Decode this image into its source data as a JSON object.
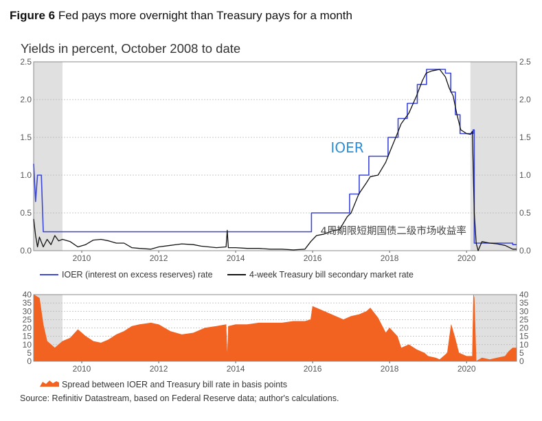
{
  "figure": {
    "label": "Figure 6",
    "title": "Fed pays more overnight than Treasury pays for a month"
  },
  "chart_title": "Yields in percent, October 2008 to date",
  "source": "Source: Refinitiv Datastream, based on Federal Reserve data; author's calculations.",
  "colors": {
    "ioer": "#3b45d6",
    "tbill": "#111111",
    "spread": "#f26322",
    "recession": "#e0e0e0",
    "grid": "#b5b5b5",
    "ioer_annotation": "#2f8fd6"
  },
  "chart_data": [
    {
      "type": "line",
      "title": "Yields in percent, October 2008 to date",
      "xlabel": "",
      "ylabel": "",
      "xlim": [
        2008.75,
        2021.3
      ],
      "ylim": [
        0,
        2.5
      ],
      "x_ticks": [
        "2010",
        "2012",
        "2014",
        "2016",
        "2018",
        "2020"
      ],
      "y_ticks": [
        "0.0",
        "0.5",
        "1.0",
        "1.5",
        "2.0",
        "2.5"
      ],
      "shaded_periods": [
        [
          2008.75,
          2009.5
        ],
        [
          2020.1,
          2021.3
        ]
      ],
      "annotations": [
        {
          "text": "IOER",
          "x": 2016.9,
          "y": 1.3
        },
        {
          "text": "4周期限短期国债二级市场收益率",
          "x": 2018.1,
          "y": 0.22
        }
      ],
      "series": [
        {
          "name": "IOER (interest on excess reserves) rate",
          "style": "step",
          "points": [
            [
              2008.75,
              1.15
            ],
            [
              2008.8,
              0.65
            ],
            [
              2008.85,
              1.0
            ],
            [
              2008.95,
              1.0
            ],
            [
              2009.0,
              0.25
            ],
            [
              2015.97,
              0.25
            ],
            [
              2015.97,
              0.5
            ],
            [
              2016.96,
              0.5
            ],
            [
              2016.96,
              0.75
            ],
            [
              2017.21,
              0.75
            ],
            [
              2017.21,
              1.0
            ],
            [
              2017.46,
              1.0
            ],
            [
              2017.46,
              1.25
            ],
            [
              2017.96,
              1.25
            ],
            [
              2017.96,
              1.5
            ],
            [
              2018.22,
              1.5
            ],
            [
              2018.22,
              1.75
            ],
            [
              2018.46,
              1.75
            ],
            [
              2018.46,
              1.95
            ],
            [
              2018.72,
              1.95
            ],
            [
              2018.72,
              2.2
            ],
            [
              2018.96,
              2.2
            ],
            [
              2018.96,
              2.4
            ],
            [
              2019.45,
              2.4
            ],
            [
              2019.45,
              2.35
            ],
            [
              2019.59,
              2.35
            ],
            [
              2019.59,
              2.1
            ],
            [
              2019.71,
              2.1
            ],
            [
              2019.71,
              1.8
            ],
            [
              2019.83,
              1.8
            ],
            [
              2019.83,
              1.55
            ],
            [
              2020.17,
              1.55
            ],
            [
              2020.17,
              1.6
            ],
            [
              2020.2,
              1.6
            ],
            [
              2020.2,
              0.1
            ],
            [
              2021.2,
              0.1
            ],
            [
              2021.2,
              0.08
            ],
            [
              2021.3,
              0.08
            ]
          ]
        },
        {
          "name": "4-week Treasury bill secondary market rate",
          "style": "line",
          "points": [
            [
              2008.75,
              0.42
            ],
            [
              2008.8,
              0.2
            ],
            [
              2008.85,
              0.05
            ],
            [
              2008.9,
              0.18
            ],
            [
              2009.0,
              0.05
            ],
            [
              2009.1,
              0.15
            ],
            [
              2009.2,
              0.08
            ],
            [
              2009.3,
              0.2
            ],
            [
              2009.4,
              0.13
            ],
            [
              2009.5,
              0.15
            ],
            [
              2009.7,
              0.12
            ],
            [
              2009.9,
              0.05
            ],
            [
              2010.1,
              0.08
            ],
            [
              2010.3,
              0.14
            ],
            [
              2010.5,
              0.15
            ],
            [
              2010.7,
              0.13
            ],
            [
              2010.9,
              0.1
            ],
            [
              2011.1,
              0.1
            ],
            [
              2011.3,
              0.04
            ],
            [
              2011.5,
              0.03
            ],
            [
              2011.8,
              0.02
            ],
            [
              2012.0,
              0.05
            ],
            [
              2012.3,
              0.07
            ],
            [
              2012.6,
              0.09
            ],
            [
              2012.9,
              0.08
            ],
            [
              2013.1,
              0.06
            ],
            [
              2013.3,
              0.05
            ],
            [
              2013.5,
              0.04
            ],
            [
              2013.75,
              0.05
            ],
            [
              2013.78,
              0.27
            ],
            [
              2013.81,
              0.04
            ],
            [
              2014.0,
              0.04
            ],
            [
              2014.3,
              0.03
            ],
            [
              2014.6,
              0.03
            ],
            [
              2014.9,
              0.02
            ],
            [
              2015.2,
              0.02
            ],
            [
              2015.5,
              0.01
            ],
            [
              2015.8,
              0.02
            ],
            [
              2015.95,
              0.12
            ],
            [
              2016.1,
              0.2
            ],
            [
              2016.3,
              0.22
            ],
            [
              2016.5,
              0.26
            ],
            [
              2016.7,
              0.28
            ],
            [
              2016.9,
              0.45
            ],
            [
              2017.0,
              0.5
            ],
            [
              2017.2,
              0.75
            ],
            [
              2017.4,
              0.9
            ],
            [
              2017.5,
              0.98
            ],
            [
              2017.7,
              1.0
            ],
            [
              2017.9,
              1.17
            ],
            [
              2018.0,
              1.3
            ],
            [
              2018.2,
              1.55
            ],
            [
              2018.3,
              1.68
            ],
            [
              2018.5,
              1.82
            ],
            [
              2018.7,
              2.05
            ],
            [
              2018.85,
              2.25
            ],
            [
              2018.95,
              2.35
            ],
            [
              2019.1,
              2.38
            ],
            [
              2019.3,
              2.4
            ],
            [
              2019.45,
              2.3
            ],
            [
              2019.55,
              2.15
            ],
            [
              2019.65,
              2.05
            ],
            [
              2019.75,
              1.8
            ],
            [
              2019.85,
              1.6
            ],
            [
              2020.0,
              1.55
            ],
            [
              2020.1,
              1.54
            ],
            [
              2020.15,
              1.58
            ],
            [
              2020.2,
              0.5
            ],
            [
              2020.25,
              0.1
            ],
            [
              2020.3,
              0.0
            ],
            [
              2020.4,
              0.12
            ],
            [
              2020.6,
              0.1
            ],
            [
              2020.8,
              0.09
            ],
            [
              2021.0,
              0.07
            ],
            [
              2021.2,
              0.02
            ],
            [
              2021.3,
              0.02
            ]
          ]
        }
      ]
    },
    {
      "type": "area",
      "title": "",
      "xlabel": "",
      "ylabel": "",
      "xlim": [
        2008.75,
        2021.3
      ],
      "ylim": [
        0,
        40
      ],
      "x_ticks": [
        "2010",
        "2012",
        "2014",
        "2016",
        "2018",
        "2020"
      ],
      "y_ticks": [
        "0",
        "5",
        "10",
        "15",
        "20",
        "25",
        "30",
        "35",
        "40"
      ],
      "shaded_periods": [
        [
          2008.75,
          2009.5
        ],
        [
          2020.2,
          2021.3
        ]
      ],
      "series": [
        {
          "name": "Spread between IOER and Treasury bill rate in basis points",
          "points": [
            [
              2008.75,
              40
            ],
            [
              2008.9,
              38
            ],
            [
              2009.0,
              22
            ],
            [
              2009.1,
              12
            ],
            [
              2009.3,
              8
            ],
            [
              2009.5,
              12
            ],
            [
              2009.7,
              14
            ],
            [
              2009.9,
              19
            ],
            [
              2010.1,
              15
            ],
            [
              2010.3,
              12
            ],
            [
              2010.5,
              11
            ],
            [
              2010.7,
              13
            ],
            [
              2010.9,
              16
            ],
            [
              2011.1,
              18
            ],
            [
              2011.3,
              21
            ],
            [
              2011.5,
              22
            ],
            [
              2011.8,
              23
            ],
            [
              2012.0,
              22
            ],
            [
              2012.3,
              18
            ],
            [
              2012.6,
              16
            ],
            [
              2012.9,
              17
            ],
            [
              2013.2,
              20
            ],
            [
              2013.5,
              21
            ],
            [
              2013.75,
              22
            ],
            [
              2013.78,
              2
            ],
            [
              2013.81,
              21
            ],
            [
              2014.0,
              22
            ],
            [
              2014.3,
              22
            ],
            [
              2014.6,
              23
            ],
            [
              2014.9,
              23
            ],
            [
              2015.2,
              23
            ],
            [
              2015.5,
              24
            ],
            [
              2015.8,
              24
            ],
            [
              2015.95,
              25
            ],
            [
              2016.0,
              33
            ],
            [
              2016.3,
              30
            ],
            [
              2016.5,
              28
            ],
            [
              2016.8,
              25
            ],
            [
              2017.0,
              27
            ],
            [
              2017.2,
              28
            ],
            [
              2017.4,
              30
            ],
            [
              2017.5,
              32
            ],
            [
              2017.7,
              26
            ],
            [
              2017.9,
              17
            ],
            [
              2018.0,
              20
            ],
            [
              2018.2,
              15
            ],
            [
              2018.3,
              8
            ],
            [
              2018.5,
              10
            ],
            [
              2018.7,
              7
            ],
            [
              2018.9,
              5
            ],
            [
              2019.0,
              3
            ],
            [
              2019.2,
              2
            ],
            [
              2019.3,
              1
            ],
            [
              2019.5,
              5
            ],
            [
              2019.6,
              22
            ],
            [
              2019.7,
              14
            ],
            [
              2019.8,
              5
            ],
            [
              2020.0,
              3
            ],
            [
              2020.15,
              3
            ],
            [
              2020.18,
              40
            ],
            [
              2020.2,
              38
            ],
            [
              2020.25,
              0
            ],
            [
              2020.4,
              2
            ],
            [
              2020.6,
              1
            ],
            [
              2020.8,
              2
            ],
            [
              2021.0,
              3
            ],
            [
              2021.1,
              6
            ],
            [
              2021.2,
              8
            ],
            [
              2021.3,
              8
            ]
          ]
        }
      ]
    }
  ],
  "legend_top": [
    {
      "label": "IOER (interest on excess reserves) rate"
    },
    {
      "label": "4-week Treasury bill secondary market rate"
    }
  ],
  "legend_bottom": [
    {
      "label": "Spread between IOER and Treasury bill rate in basis points"
    }
  ]
}
